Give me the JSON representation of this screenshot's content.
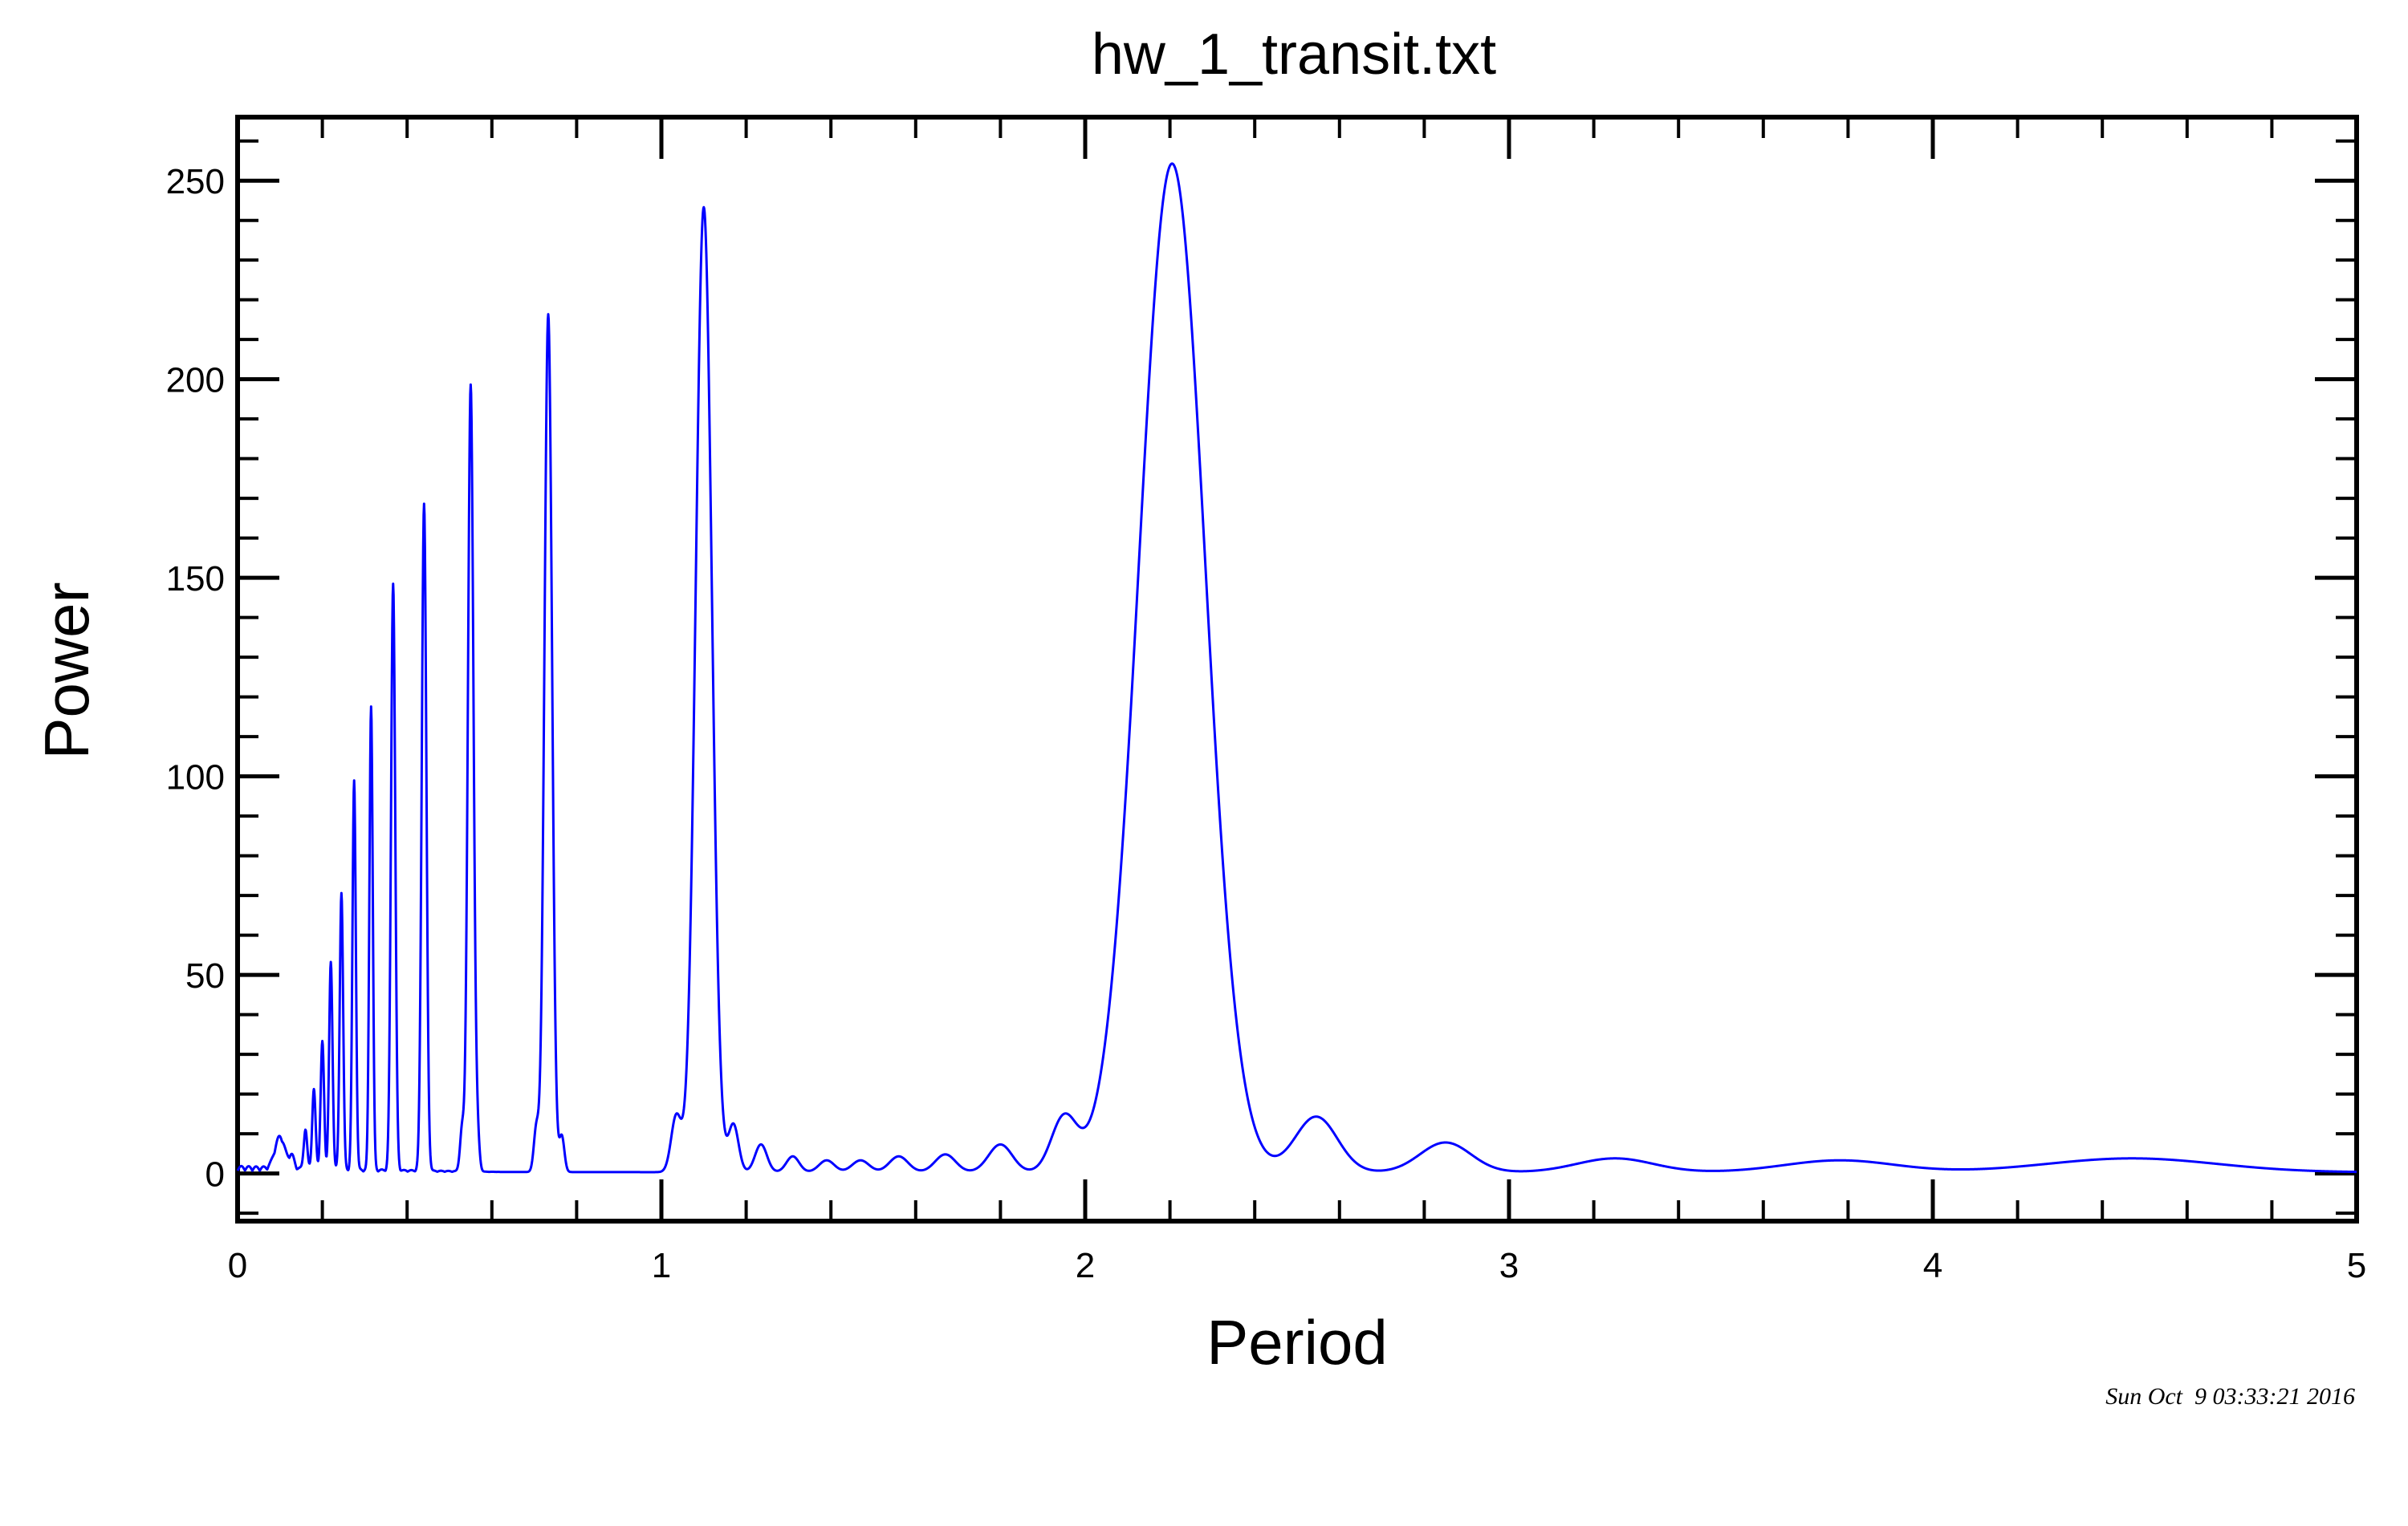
{
  "chart_data": {
    "type": "line",
    "title": "hw_1_transit.txt",
    "xlabel": "Period",
    "ylabel": "Power",
    "xlim": [
      0,
      5
    ],
    "ylim": [
      -12,
      266
    ],
    "xticks": [
      "0",
      "1",
      "2",
      "3",
      "4",
      "5"
    ],
    "yticks": [
      "0",
      "50",
      "100",
      "150",
      "200",
      "250"
    ],
    "grid": false,
    "line_color": "#0000ff",
    "timestamp": "Sun Oct  9 03:33:21 2016",
    "peaks": [
      {
        "x": 0.1,
        "y": 8,
        "width": 0.012
      },
      {
        "x": 0.128,
        "y": 3,
        "width": 0.006
      },
      {
        "x": 0.16,
        "y": 10,
        "width": 0.004
      },
      {
        "x": 0.18,
        "y": 20,
        "width": 0.004
      },
      {
        "x": 0.2,
        "y": 32,
        "width": 0.004
      },
      {
        "x": 0.22,
        "y": 52,
        "width": 0.004
      },
      {
        "x": 0.245,
        "y": 70,
        "width": 0.004
      },
      {
        "x": 0.275,
        "y": 98,
        "width": 0.004
      },
      {
        "x": 0.315,
        "y": 117,
        "width": 0.004
      },
      {
        "x": 0.367,
        "y": 148,
        "width": 0.005
      },
      {
        "x": 0.44,
        "y": 168,
        "width": 0.0055
      },
      {
        "x": 0.55,
        "y": 198,
        "width": 0.0065
      },
      {
        "x": 0.733,
        "y": 216,
        "width": 0.009
      },
      {
        "x": 1.1,
        "y": 243,
        "width": 0.019
      },
      {
        "x": 2.205,
        "y": 254,
        "width": 0.078
      },
      {
        "x": 0.53,
        "y": 11,
        "width": 0.005
      },
      {
        "x": 0.565,
        "y": 10,
        "width": 0.005
      },
      {
        "x": 0.705,
        "y": 11,
        "width": 0.006
      },
      {
        "x": 0.765,
        "y": 9,
        "width": 0.006
      },
      {
        "x": 1.035,
        "y": 14,
        "width": 0.012
      },
      {
        "x": 1.17,
        "y": 12,
        "width": 0.012
      },
      {
        "x": 1.235,
        "y": 7,
        "width": 0.014
      },
      {
        "x": 1.31,
        "y": 4,
        "width": 0.015
      },
      {
        "x": 1.39,
        "y": 3,
        "width": 0.018
      },
      {
        "x": 1.47,
        "y": 3,
        "width": 0.02
      },
      {
        "x": 1.56,
        "y": 4,
        "width": 0.022
      },
      {
        "x": 1.67,
        "y": 4.5,
        "width": 0.024
      },
      {
        "x": 1.8,
        "y": 7,
        "width": 0.028
      },
      {
        "x": 1.95,
        "y": 13.5,
        "width": 0.03
      },
      {
        "x": 2.545,
        "y": 14,
        "width": 0.05
      },
      {
        "x": 2.85,
        "y": 7.5,
        "width": 0.06
      },
      {
        "x": 3.25,
        "y": 3.5,
        "width": 0.09
      },
      {
        "x": 3.78,
        "y": 3,
        "width": 0.13
      },
      {
        "x": 4.47,
        "y": 3.5,
        "width": 0.2
      }
    ]
  }
}
